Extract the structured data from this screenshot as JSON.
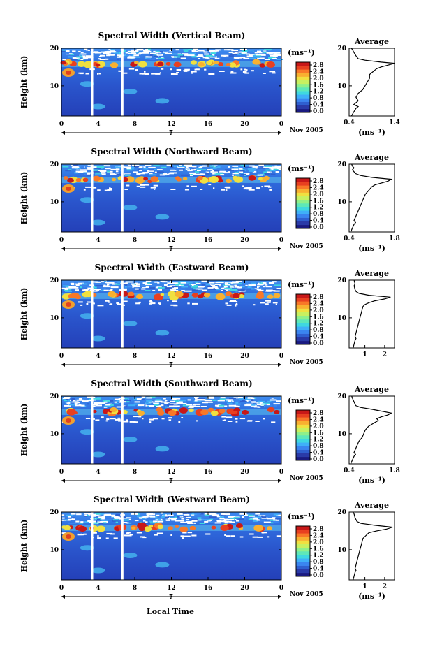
{
  "figure": {
    "x_axis_label": "Local Time",
    "date_label": "Nov 2005"
  },
  "colorbar": {
    "unit": "(ms⁻¹)",
    "tick_labels": [
      "2.8",
      "2.4",
      "2.0",
      "1.6",
      "1.2",
      "0.8",
      "0.4",
      "0.0"
    ],
    "colors": [
      "#1a1a80",
      "#2a3aa8",
      "#2f5fd0",
      "#3a85f0",
      "#3fb0f8",
      "#3fd8e0",
      "#5ee8b8",
      "#8ff08a",
      "#c8f060",
      "#f0e040",
      "#f8b030",
      "#f87828",
      "#e84020",
      "#c81818"
    ]
  },
  "chart_data": [
    {
      "type": "heatmap",
      "title": "Spectral Width (Vertical Beam)",
      "ylabel": "Height (km)",
      "xlim": [
        0,
        24
      ],
      "ylim": [
        2,
        20
      ],
      "xticks": [
        "0",
        "4",
        "8",
        "12",
        "16",
        "20",
        "0"
      ],
      "yticks": [
        "20",
        "10"
      ],
      "sub_tick": "7",
      "value_range": [
        0.0,
        2.8
      ]
    },
    {
      "type": "heatmap",
      "title": "Spectral Width (Northward Beam)",
      "ylabel": "Height (km)",
      "xlim": [
        0,
        24
      ],
      "ylim": [
        2,
        20
      ],
      "xticks": [
        "0",
        "4",
        "8",
        "12",
        "16",
        "20",
        "0"
      ],
      "yticks": [
        "20",
        "10"
      ],
      "sub_tick": "7",
      "value_range": [
        0.0,
        2.8
      ]
    },
    {
      "type": "heatmap",
      "title": "Spectral Width (Eastward Beam)",
      "ylabel": "Height (km)",
      "xlim": [
        0,
        24
      ],
      "ylim": [
        2,
        20
      ],
      "xticks": [
        "0",
        "4",
        "8",
        "12",
        "16",
        "20",
        "0"
      ],
      "yticks": [
        "20",
        "10"
      ],
      "sub_tick": "7",
      "value_range": [
        0.0,
        2.8
      ]
    },
    {
      "type": "heatmap",
      "title": "Spectral Width (Southward Beam)",
      "ylabel": "Height (km)",
      "xlim": [
        0,
        24
      ],
      "ylim": [
        2,
        20
      ],
      "xticks": [
        "0",
        "4",
        "8",
        "12",
        "16",
        "20",
        "0"
      ],
      "yticks": [
        "20",
        "10"
      ],
      "sub_tick": "7",
      "value_range": [
        0.0,
        2.8
      ]
    },
    {
      "type": "heatmap",
      "title": "Spectral Width (Westward Beam)",
      "ylabel": "Height (km)",
      "xlim": [
        0,
        24
      ],
      "ylim": [
        2,
        20
      ],
      "xticks": [
        "0",
        "4",
        "8",
        "12",
        "16",
        "20",
        "0"
      ],
      "yticks": [
        "20",
        "10"
      ],
      "sub_tick": "7",
      "value_range": [
        0.0,
        2.8
      ]
    },
    {
      "type": "line",
      "title": "Average",
      "xlabel": "(ms⁻¹)",
      "xlim": [
        0.4,
        1.4
      ],
      "ylim": [
        2,
        20
      ],
      "xticks": [
        "0.4",
        "1.4"
      ],
      "yticks": [
        "20",
        "10"
      ],
      "x": [
        0.45,
        0.5,
        0.55,
        0.6,
        0.5,
        0.6,
        0.55,
        0.6,
        0.7,
        0.75,
        0.8,
        0.85,
        0.85,
        0.9,
        0.95,
        1.0,
        1.1,
        1.25,
        1.35,
        1.4,
        1.1,
        0.75,
        0.6,
        0.55,
        0.5,
        0.48,
        0.45
      ],
      "y": [
        2,
        3,
        4,
        4.5,
        5,
        6,
        7,
        8,
        9,
        10,
        11,
        12,
        13,
        13.5,
        14,
        14.5,
        15,
        15.5,
        15.8,
        16,
        16.3,
        16.8,
        17.2,
        18,
        19,
        19.5,
        20
      ]
    },
    {
      "type": "line",
      "title": "Average",
      "xlabel": "(ms⁻¹)",
      "xlim": [
        0.4,
        1.8
      ],
      "ylim": [
        2,
        20
      ],
      "xticks": [
        "0.4",
        "1.8"
      ],
      "yticks": [
        "20",
        "10"
      ],
      "x": [
        0.45,
        0.5,
        0.55,
        0.6,
        0.55,
        0.6,
        0.65,
        0.7,
        0.75,
        0.8,
        0.85,
        0.9,
        0.95,
        1.0,
        1.05,
        1.1,
        1.2,
        1.4,
        1.6,
        1.7,
        1.1,
        0.75,
        0.6,
        0.55,
        0.5,
        0.55,
        0.5,
        0.48
      ],
      "y": [
        2,
        3,
        4,
        4.5,
        5,
        6,
        7,
        8,
        9,
        10,
        11,
        12,
        12.5,
        13,
        13.5,
        14,
        14.5,
        15,
        15.5,
        16,
        16.5,
        17,
        17.5,
        18,
        18.5,
        19,
        19.5,
        20
      ]
    },
    {
      "type": "line",
      "title": "Average",
      "xlabel": "",
      "xlim": [
        0.2,
        2.5
      ],
      "ylim": [
        2,
        20
      ],
      "xticks": [
        "1",
        "2"
      ],
      "yticks": [
        "20",
        "10"
      ],
      "x": [
        0.4,
        0.45,
        0.5,
        0.55,
        0.5,
        0.55,
        0.6,
        0.65,
        0.7,
        0.75,
        0.8,
        0.85,
        0.9,
        1.0,
        1.2,
        1.5,
        2.0,
        2.3,
        1.2,
        0.7,
        0.55,
        0.5,
        0.45,
        0.5,
        0.45
      ],
      "y": [
        2,
        3,
        4,
        4.5,
        5,
        6,
        7,
        8,
        9,
        10,
        11,
        12,
        13,
        13.5,
        14,
        14.5,
        15,
        15.5,
        16,
        16.5,
        17,
        17.5,
        18.5,
        19,
        20
      ]
    },
    {
      "type": "line",
      "title": "Average",
      "xlabel": "(ms⁻¹)",
      "xlim": [
        0.4,
        1.8
      ],
      "ylim": [
        2,
        20
      ],
      "xticks": [
        "0.4",
        "1.8"
      ],
      "yticks": [
        "20",
        "10"
      ],
      "x": [
        0.45,
        0.5,
        0.55,
        0.6,
        0.55,
        0.6,
        0.65,
        0.7,
        0.8,
        0.85,
        0.9,
        1.0,
        1.1,
        1.2,
        1.3,
        1.25,
        1.4,
        1.6,
        1.7,
        1.1,
        0.75,
        0.6,
        0.55,
        0.5,
        0.48
      ],
      "y": [
        2,
        3,
        4,
        4.5,
        5,
        6,
        7,
        8,
        9,
        10,
        11,
        12,
        12.5,
        13,
        13.5,
        14,
        14.5,
        15,
        15.5,
        16.5,
        17,
        17.5,
        18.5,
        19.5,
        20
      ]
    },
    {
      "type": "line",
      "title": "Average",
      "xlabel": "(ms⁻¹)",
      "xlim": [
        0.2,
        2.5
      ],
      "ylim": [
        2,
        20
      ],
      "xticks": [
        "1",
        "2"
      ],
      "yticks": [
        "20",
        "10"
      ],
      "x": [
        0.4,
        0.45,
        0.5,
        0.55,
        0.5,
        0.55,
        0.6,
        0.65,
        0.7,
        0.75,
        0.8,
        0.85,
        0.9,
        1.0,
        1.1,
        1.2,
        1.6,
        2.1,
        2.4,
        1.5,
        0.8,
        0.6,
        0.5,
        0.45,
        0.4
      ],
      "y": [
        2,
        3,
        4,
        4.5,
        5,
        6,
        7,
        8,
        9,
        10,
        11,
        12,
        13,
        13.5,
        14,
        14.5,
        15,
        15.5,
        16,
        16.5,
        17,
        17.5,
        18.5,
        19.5,
        20
      ]
    }
  ]
}
